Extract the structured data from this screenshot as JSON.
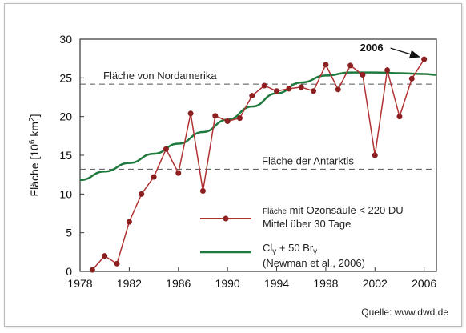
{
  "chart_data": {
    "type": "line",
    "title": "",
    "ylabel_main": "Fläche [10",
    "ylabel_sup": "6",
    "ylabel_unit": " km",
    "ylabel_sup2": "2",
    "ylabel_close": "]",
    "xlim": [
      1978,
      2007
    ],
    "ylim": [
      0,
      30
    ],
    "xticks": [
      1978,
      1982,
      1986,
      1990,
      1994,
      1998,
      2002,
      2006
    ],
    "yticks": [
      0,
      5,
      10,
      15,
      20,
      25,
      30
    ],
    "reference_lines": [
      {
        "label": "Fläche von Nordamerika",
        "y": 24.2
      },
      {
        "label": "Fläche der Antarktis",
        "y": 13.2
      }
    ],
    "series": [
      {
        "name_small": "Fläche",
        "name_rest": " mit Ozonsäule < 220 DU",
        "name_line2": "Mittel über 30 Tage",
        "color": "#b03232",
        "x": [
          1979,
          1980,
          1981,
          1982,
          1983,
          1984,
          1985,
          1986,
          1987,
          1988,
          1989,
          1990,
          1991,
          1992,
          1993,
          1994,
          1995,
          1996,
          1997,
          1998,
          1999,
          2000,
          2001,
          2002,
          2003,
          2004,
          2005,
          2006
        ],
        "y": [
          0.2,
          2.0,
          1.0,
          6.4,
          10.0,
          12.2,
          15.8,
          12.7,
          20.4,
          10.4,
          20.1,
          19.4,
          19.8,
          22.7,
          24.0,
          23.3,
          23.6,
          23.8,
          23.3,
          26.7,
          23.5,
          26.6,
          25.4,
          15.0,
          26.0,
          20.0,
          24.9,
          27.4
        ]
      },
      {
        "name_main": "Cl",
        "name_sub1": "y",
        "name_mid": " + 50 Br",
        "name_sub2": "y",
        "name_line2": "(Newman et al., 2006)",
        "color": "#1f7a3e",
        "x": [
          1978,
          1980,
          1982,
          1984,
          1986,
          1988,
          1990,
          1992,
          1994,
          1996,
          1998,
          2000,
          2002,
          2004,
          2006,
          2007
        ],
        "y": [
          11.8,
          12.9,
          14.0,
          15.2,
          16.5,
          18.0,
          19.6,
          21.3,
          23.0,
          24.4,
          25.3,
          25.7,
          25.7,
          25.6,
          25.5,
          25.4
        ]
      }
    ],
    "annotations": [
      {
        "text": "2006",
        "x": 2006,
        "y": 27.4
      }
    ]
  },
  "source": "Quelle: www.dwd.de"
}
